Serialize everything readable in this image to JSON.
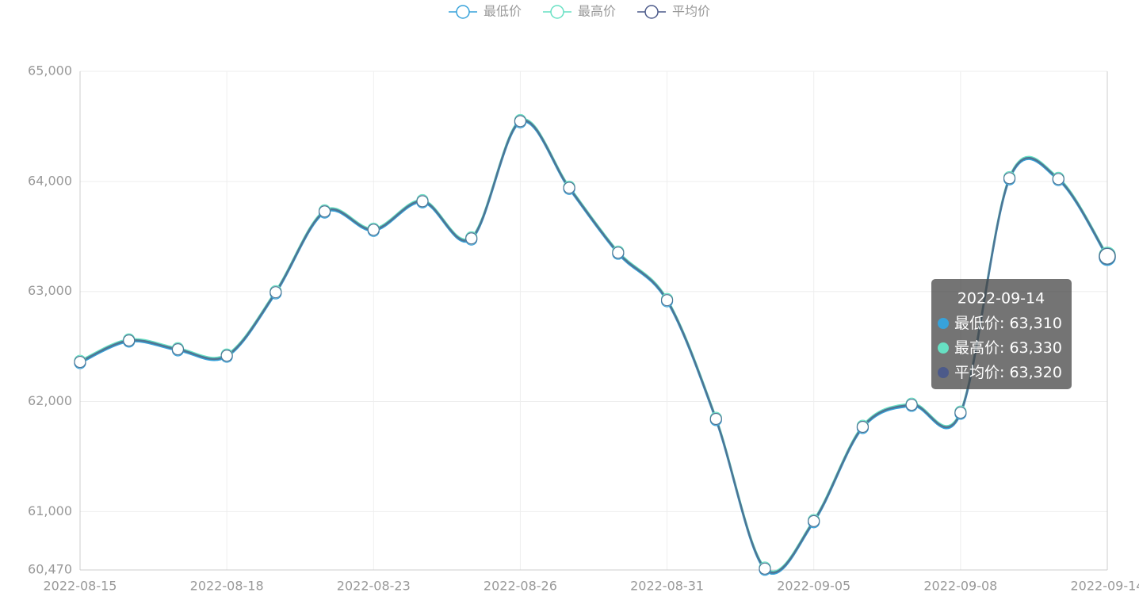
{
  "chart_data": {
    "type": "line",
    "categories": [
      "2022-08-15",
      null,
      null,
      "2022-08-18",
      null,
      null,
      "2022-08-23",
      null,
      null,
      "2022-08-26",
      null,
      null,
      "2022-08-31",
      null,
      null,
      "2022-09-05",
      null,
      null,
      "2022-09-08",
      null,
      null,
      "2022-09-14"
    ],
    "series": [
      {
        "name": "最低价",
        "color": "#37a2da",
        "values": [
          62350,
          62545,
          62465,
          62407,
          62983,
          63717,
          63551,
          63810,
          63472,
          64537,
          63932,
          63343,
          62911,
          61832,
          60472,
          60904,
          61760,
          61961,
          61889,
          64019,
          64012,
          63310
        ],
        "value_labels": [
          null,
          null,
          null,
          null,
          null,
          null,
          null,
          null,
          null,
          null,
          null,
          null,
          null,
          null,
          null,
          null,
          null,
          null,
          null,
          null,
          null,
          "63,310"
        ]
      },
      {
        "name": "最高价",
        "color": "#67e0c3",
        "values": [
          62370,
          62565,
          62485,
          62427,
          63003,
          63737,
          63571,
          63830,
          63492,
          64557,
          63952,
          63363,
          62931,
          61852,
          60492,
          60924,
          61780,
          61981,
          61909,
          64039,
          64032,
          63330
        ],
        "value_labels": [
          null,
          null,
          null,
          null,
          null,
          null,
          null,
          null,
          null,
          null,
          null,
          null,
          null,
          null,
          null,
          null,
          null,
          null,
          null,
          null,
          null,
          "63,330"
        ]
      },
      {
        "name": "平均价",
        "color": "#4c5a8a",
        "values": [
          62360,
          62555,
          62475,
          62417,
          62993,
          63727,
          63561,
          63820,
          63482,
          64547,
          63942,
          63353,
          62921,
          61842,
          60482,
          60914,
          61770,
          61971,
          61899,
          64029,
          64022,
          63320
        ],
        "value_labels": [
          null,
          null,
          null,
          null,
          null,
          null,
          null,
          null,
          null,
          null,
          null,
          null,
          null,
          null,
          null,
          null,
          null,
          null,
          null,
          null,
          null,
          "63,320"
        ]
      }
    ],
    "ylim": [
      60470,
      65000
    ],
    "yticks": [
      {
        "value": 60470,
        "label": "60,470"
      },
      {
        "value": 61000,
        "label": "61,000"
      },
      {
        "value": 62000,
        "label": "62,000"
      },
      {
        "value": 63000,
        "label": "63,000"
      },
      {
        "value": 64000,
        "label": "64,000"
      },
      {
        "value": 65000,
        "label": "65,000"
      }
    ],
    "grid": true
  }
}
